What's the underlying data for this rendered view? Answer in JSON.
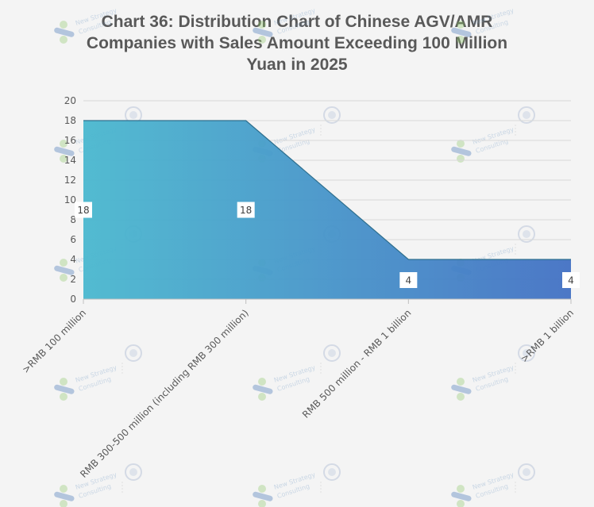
{
  "chart_data": {
    "type": "area",
    "title": "Chart 36: Distribution Chart of Chinese AGV/AMR Companies with Sales Amount Exceeding 100 Million Yuan in 2025",
    "title_lines": [
      "Chart 36: Distribution Chart of Chinese AGV/AMR",
      "Companies with Sales Amount Exceeding 100 Million",
      "Yuan in 2025"
    ],
    "categories": [
      ">RMB 100 million",
      "RMB 300-500 million (including RMB 300 million)",
      "RMB 500 million - RMB 1 billion",
      ">RMB 1 billion"
    ],
    "values": [
      18,
      18,
      4,
      4
    ],
    "ylim": [
      0,
      20
    ],
    "yticks": [
      0,
      2,
      4,
      6,
      8,
      10,
      12,
      14,
      16,
      18,
      20
    ],
    "grid": true,
    "legend": "none",
    "colors": {
      "fill_start": "#4ab8cf",
      "fill_end": "#4371c4",
      "line": "#2e6f8e"
    }
  },
  "watermark": {
    "name": "New Strategy Consulting",
    "lines": [
      "New Strategy",
      "Consulting"
    ]
  }
}
